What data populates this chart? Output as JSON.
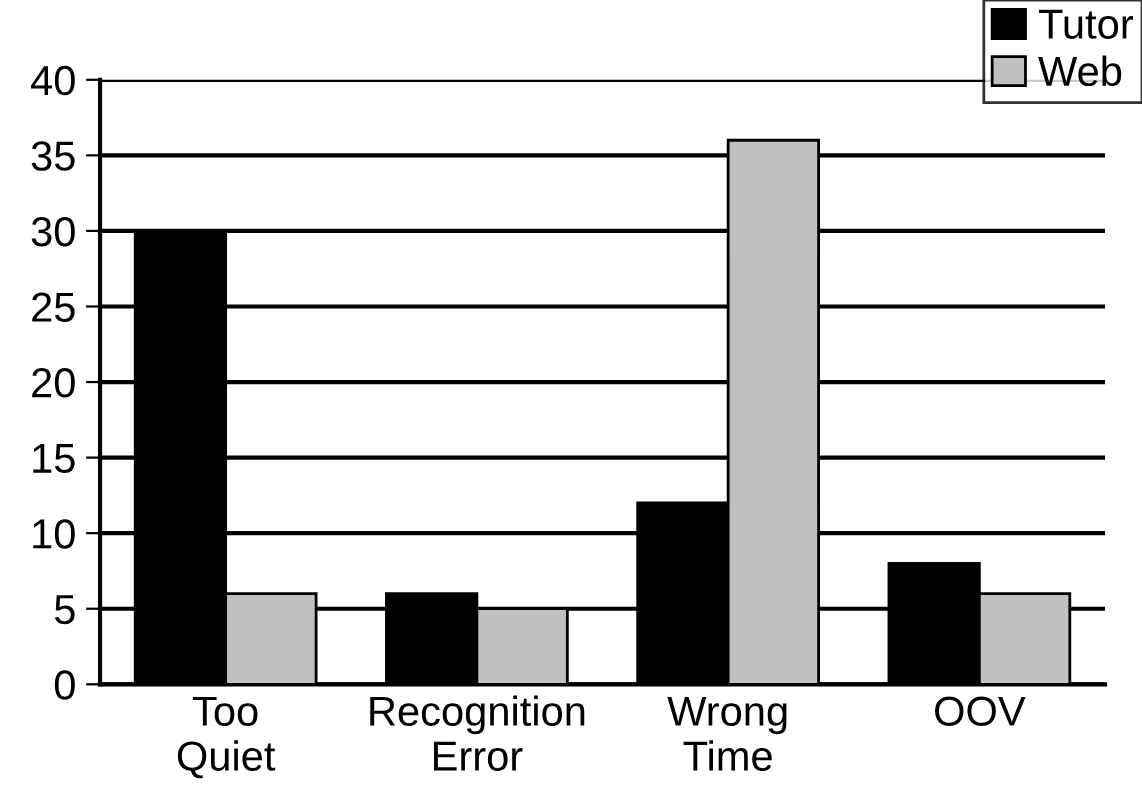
{
  "chart_data": {
    "type": "bar",
    "categories": [
      "Too\nQuiet",
      "Recognition\nError",
      "Wrong\nTime",
      "OOV"
    ],
    "series": [
      {
        "name": "Tutor",
        "color": "#000000",
        "values": [
          30,
          6,
          12,
          8
        ]
      },
      {
        "name": "Web",
        "color": "#c0c0c0",
        "values": [
          6,
          5,
          36,
          6
        ]
      }
    ],
    "ylim": [
      0,
      40
    ],
    "yticks": [
      0,
      5,
      10,
      15,
      20,
      25,
      30,
      35,
      40
    ],
    "grid": "y",
    "legend": "top right"
  }
}
